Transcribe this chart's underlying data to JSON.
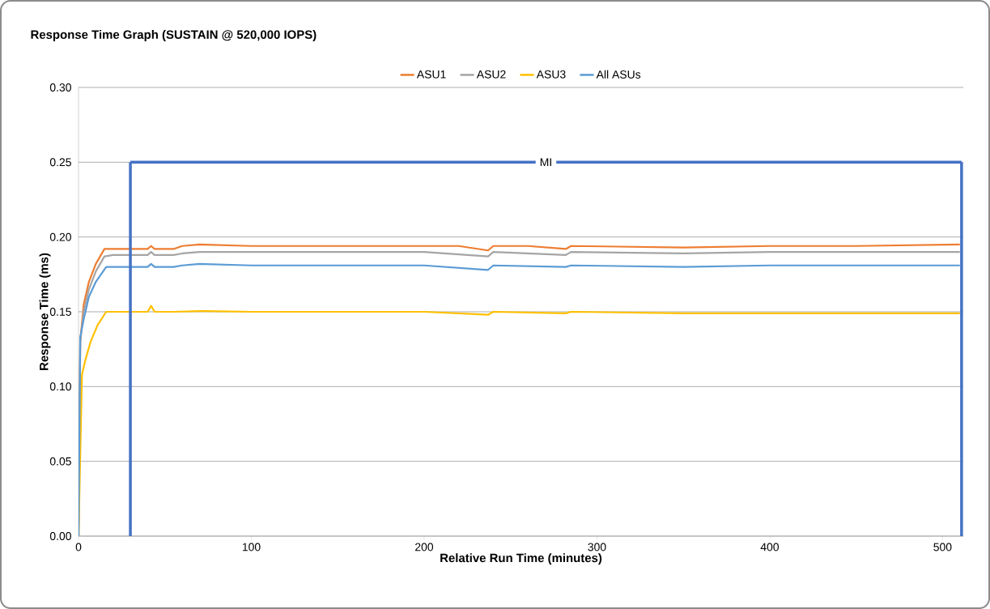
{
  "chart_data": {
    "type": "line",
    "title": "Response Time Graph (SUSTAIN @ 520,000 IOPS)",
    "xlabel": "Relative Run Time (minutes)",
    "ylabel": "Response Time (ms)",
    "xlim": [
      0,
      512
    ],
    "xticks": [
      0,
      100,
      200,
      300,
      400,
      500
    ],
    "ylim": [
      0,
      0.3
    ],
    "yticks": [
      {
        "value": 0,
        "label": "0.00"
      },
      {
        "value": 0.05,
        "label": "0.05"
      },
      {
        "value": 0.1,
        "label": "0.10"
      },
      {
        "value": 0.15,
        "label": "0.15"
      },
      {
        "value": 0.2,
        "label": "0.20"
      },
      {
        "value": 0.25,
        "label": "0.25"
      },
      {
        "value": 0.3,
        "label": "0.30"
      }
    ],
    "grid": "y",
    "legend": "top",
    "marker": "none",
    "line_style": "solid",
    "series": [
      {
        "name": "ASU1",
        "color": "#ed7d31",
        "x": [
          0,
          1,
          3,
          6,
          10,
          15,
          20,
          30,
          40,
          42,
          44,
          55,
          60,
          70,
          100,
          150,
          200,
          220,
          237,
          240,
          260,
          282,
          285,
          350,
          400,
          450,
          510
        ],
        "values": [
          0,
          0.13,
          0.155,
          0.17,
          0.182,
          0.192,
          0.192,
          0.192,
          0.192,
          0.194,
          0.192,
          0.192,
          0.194,
          0.195,
          0.194,
          0.194,
          0.194,
          0.194,
          0.191,
          0.194,
          0.194,
          0.192,
          0.194,
          0.193,
          0.194,
          0.194,
          0.195
        ]
      },
      {
        "name": "ASU2",
        "color": "#a5a5a5",
        "x": [
          0,
          1,
          3,
          6,
          10,
          15,
          20,
          30,
          40,
          42,
          44,
          55,
          60,
          70,
          100,
          150,
          200,
          237,
          240,
          282,
          285,
          350,
          400,
          450,
          510
        ],
        "values": [
          0,
          0.13,
          0.15,
          0.165,
          0.177,
          0.187,
          0.188,
          0.188,
          0.188,
          0.19,
          0.188,
          0.188,
          0.189,
          0.19,
          0.19,
          0.19,
          0.19,
          0.187,
          0.19,
          0.188,
          0.19,
          0.189,
          0.19,
          0.19,
          0.19
        ]
      },
      {
        "name": "ASU3",
        "color": "#ffc000",
        "x": [
          0,
          2,
          4,
          7,
          11,
          16,
          20,
          30,
          40,
          42,
          44,
          55,
          70,
          100,
          150,
          200,
          237,
          240,
          282,
          285,
          350,
          400,
          450,
          510
        ],
        "values": [
          0,
          0.108,
          0.118,
          0.13,
          0.141,
          0.15,
          0.15,
          0.15,
          0.15,
          0.154,
          0.15,
          0.15,
          0.1505,
          0.15,
          0.15,
          0.15,
          0.148,
          0.15,
          0.149,
          0.15,
          0.149,
          0.149,
          0.149,
          0.149
        ]
      },
      {
        "name": "All ASUs",
        "color": "#5b9bd5",
        "x": [
          0,
          1,
          3,
          6,
          10,
          16,
          20,
          30,
          40,
          42,
          44,
          55,
          60,
          70,
          100,
          150,
          200,
          237,
          240,
          282,
          285,
          350,
          400,
          450,
          510
        ],
        "values": [
          0,
          0.133,
          0.145,
          0.16,
          0.17,
          0.18,
          0.18,
          0.18,
          0.18,
          0.182,
          0.18,
          0.18,
          0.181,
          0.182,
          0.181,
          0.181,
          0.181,
          0.178,
          0.181,
          0.18,
          0.181,
          0.18,
          0.181,
          0.181,
          0.181
        ]
      },
      {
        "color": "#4472c4",
        "x": [
          30,
          511
        ],
        "values": [
          0.25,
          0.25
        ]
      }
    ],
    "ref_lines": [
      {
        "axis": "x",
        "value": 30,
        "color": "#4472c4"
      },
      {
        "axis": "x",
        "value": 511,
        "color": "#4472c4"
      }
    ],
    "annotations": [
      {
        "text": "MI",
        "x": 270.5,
        "y": 0.25
      }
    ]
  }
}
